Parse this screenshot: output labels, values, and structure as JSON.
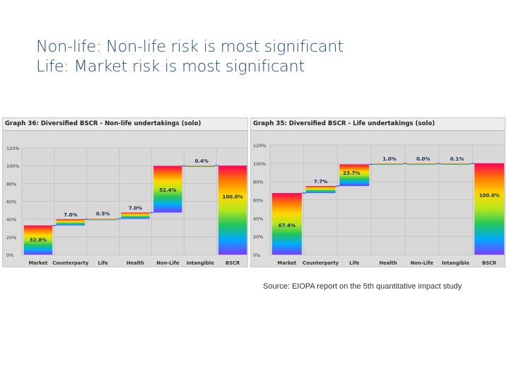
{
  "slide": {
    "title_line1": "Non-life: Non-life risk is most significant",
    "title_line2": "Life: Market risk is most significant"
  },
  "source": "Source: EIOPA report on the 5th quantitative impact study",
  "colors": {
    "rainbow_top_to_bottom": [
      "#ff0055",
      "#ff7a00",
      "#ffd800",
      "#b5e61d",
      "#22c55e",
      "#00aaff",
      "#7a3cff"
    ],
    "connector": "#4a6fb5",
    "panel_background": "#dcdcdc",
    "gridline": "#c4c4c4"
  },
  "chart_data": [
    {
      "type": "bar",
      "subtype": "waterfall",
      "title": "Graph 36: Diversified BSCR - Non-life undertakings (solo)",
      "ylim": [
        0,
        120
      ],
      "y_ticks": [
        "0%",
        "20%",
        "40%",
        "60%",
        "80%",
        "100%",
        "120%"
      ],
      "grid": true,
      "categories": [
        "Market",
        "Counterparty",
        "Life",
        "Health",
        "Non-Life",
        "Intangible",
        "BSCR"
      ],
      "values": [
        32.8,
        7.0,
        0.5,
        7.0,
        52.4,
        0.4,
        100.0
      ],
      "data_labels": [
        "32.8%",
        "7.0%",
        "0.5%",
        "7.0%",
        "52.4%",
        "0.4%",
        "100.0%"
      ],
      "total_category": "BSCR"
    },
    {
      "type": "bar",
      "subtype": "waterfall",
      "title": "Graph 35: Diversified BSCR - Life undertakings (solo)",
      "ylim": [
        0,
        120
      ],
      "y_ticks": [
        "0%",
        "20%",
        "40%",
        "60%",
        "80%",
        "100%",
        "120%"
      ],
      "grid": true,
      "categories": [
        "Market",
        "Counterparty",
        "Life",
        "Health",
        "Non-Life",
        "Intangible",
        "BSCR"
      ],
      "values": [
        67.4,
        7.7,
        23.7,
        1.0,
        0.0,
        0.1,
        100.0
      ],
      "data_labels": [
        "67.4%",
        "7.7%",
        "23.7%",
        "1.0%",
        "0.0%",
        "0.1%",
        "100.0%"
      ],
      "total_category": "BSCR"
    }
  ]
}
